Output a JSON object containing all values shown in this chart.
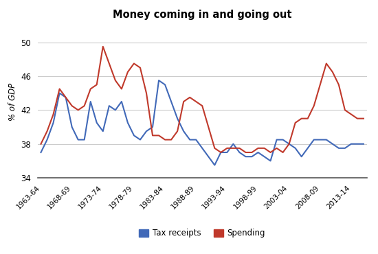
{
  "title": "Money coming in and going out",
  "ylabel": "% of GDP",
  "ylim": [
    34,
    52
  ],
  "yticks": [
    34,
    38,
    42,
    46,
    50
  ],
  "x_labels": [
    "1963-64",
    "1968-69",
    "1973-74",
    "1978-79",
    "1983-84",
    "1988-89",
    "1993-94",
    "1998-99",
    "2003-04",
    "2008-09",
    "2013-14"
  ],
  "tax_receipts": {
    "label": "Tax receipts",
    "color": "#4169b8",
    "values": [
      37.0,
      38.5,
      40.5,
      44.0,
      43.5,
      40.0,
      38.5,
      38.5,
      43.0,
      40.5,
      39.5,
      42.5,
      42.0,
      43.0,
      40.5,
      39.0,
      38.5,
      39.5,
      40.0,
      45.5,
      45.0,
      43.0,
      41.0,
      39.5,
      38.5,
      38.5,
      37.5,
      36.5,
      35.5,
      37.0,
      37.0,
      38.0,
      37.0,
      36.5,
      36.5,
      37.0,
      36.5,
      36.0,
      38.5,
      38.5,
      38.0,
      37.5,
      36.5,
      37.5,
      38.5,
      38.5,
      38.5,
      38.0,
      37.5,
      37.5,
      38.0,
      38.0,
      38.0
    ]
  },
  "spending": {
    "label": "Spending",
    "color": "#c0392b",
    "values": [
      38.0,
      39.5,
      41.5,
      44.5,
      43.5,
      42.5,
      42.0,
      42.5,
      44.5,
      45.0,
      49.5,
      47.5,
      45.5,
      44.5,
      46.5,
      47.5,
      47.0,
      44.0,
      39.0,
      39.0,
      38.5,
      38.5,
      39.5,
      43.0,
      43.5,
      43.0,
      42.5,
      40.0,
      37.5,
      37.0,
      37.5,
      37.5,
      37.5,
      37.0,
      37.0,
      37.5,
      37.5,
      37.0,
      37.5,
      37.0,
      38.0,
      40.5,
      41.0,
      41.0,
      42.5,
      45.0,
      47.5,
      46.5,
      45.0,
      42.0,
      41.5,
      41.0,
      41.0
    ]
  },
  "n_points": 53,
  "background_color": "#ffffff",
  "grid_color": "#cccccc"
}
